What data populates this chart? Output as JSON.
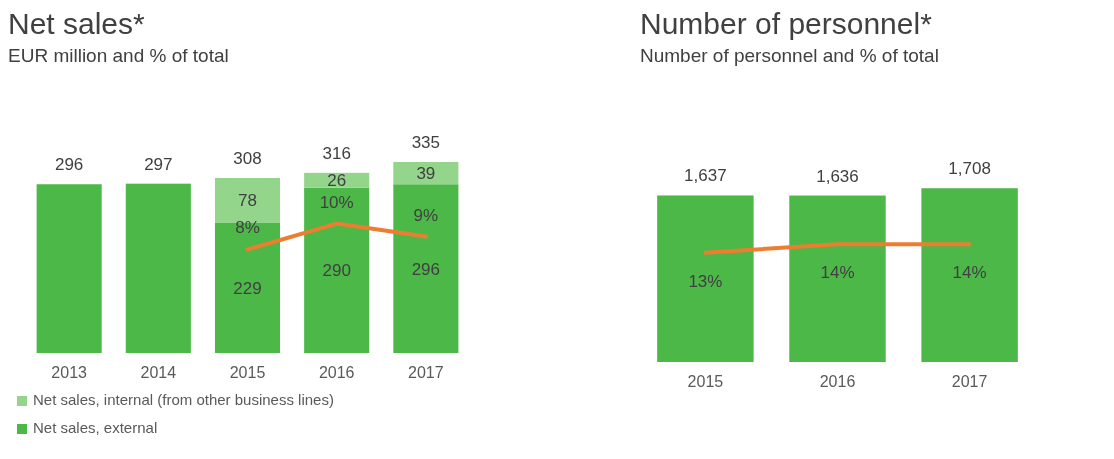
{
  "chart_data": [
    {
      "type": "bar",
      "title": "Net sales*",
      "subtitle": "EUR million and % of total",
      "categories": [
        "2013",
        "2014",
        "2015",
        "2016",
        "2017"
      ],
      "stacked": true,
      "tick_labels": "x",
      "legend": "bottom",
      "totals": [
        "296",
        "297",
        "308",
        "316",
        "335"
      ],
      "series": [
        {
          "name": "Net sales, external",
          "color": "#4cb848",
          "values": [
            296,
            297,
            229,
            290,
            296
          ],
          "value_labels": [
            null,
            null,
            "229",
            "290",
            "296"
          ]
        },
        {
          "name": "Net sales, internal (from other business lines)",
          "color": "#93d58a",
          "values": [
            null,
            null,
            78,
            26,
            39
          ],
          "value_labels": [
            null,
            null,
            "78",
            "26",
            "39"
          ]
        },
        {
          "type": "line",
          "axis": "y2",
          "color": "#ed7d31",
          "values": [
            null,
            null,
            8,
            10,
            9
          ],
          "value_labels": [
            null,
            null,
            "8%",
            "10%",
            "9%"
          ]
        }
      ]
    },
    {
      "type": "bar",
      "title": "Number  of personnel*",
      "subtitle": "Number of personnel and % of total",
      "categories": [
        "2015",
        "2016",
        "2017"
      ],
      "tick_labels": "x",
      "series": [
        {
          "color": "#4cb848",
          "values": [
            1637,
            1636,
            1708
          ],
          "value_labels": [
            "1,637",
            "1,636",
            "1,708"
          ]
        },
        {
          "type": "line",
          "axis": "y2",
          "color": "#ed7d31",
          "values": [
            13,
            14,
            14
          ],
          "value_labels": [
            "13%",
            "14%",
            "14%"
          ]
        }
      ]
    }
  ]
}
